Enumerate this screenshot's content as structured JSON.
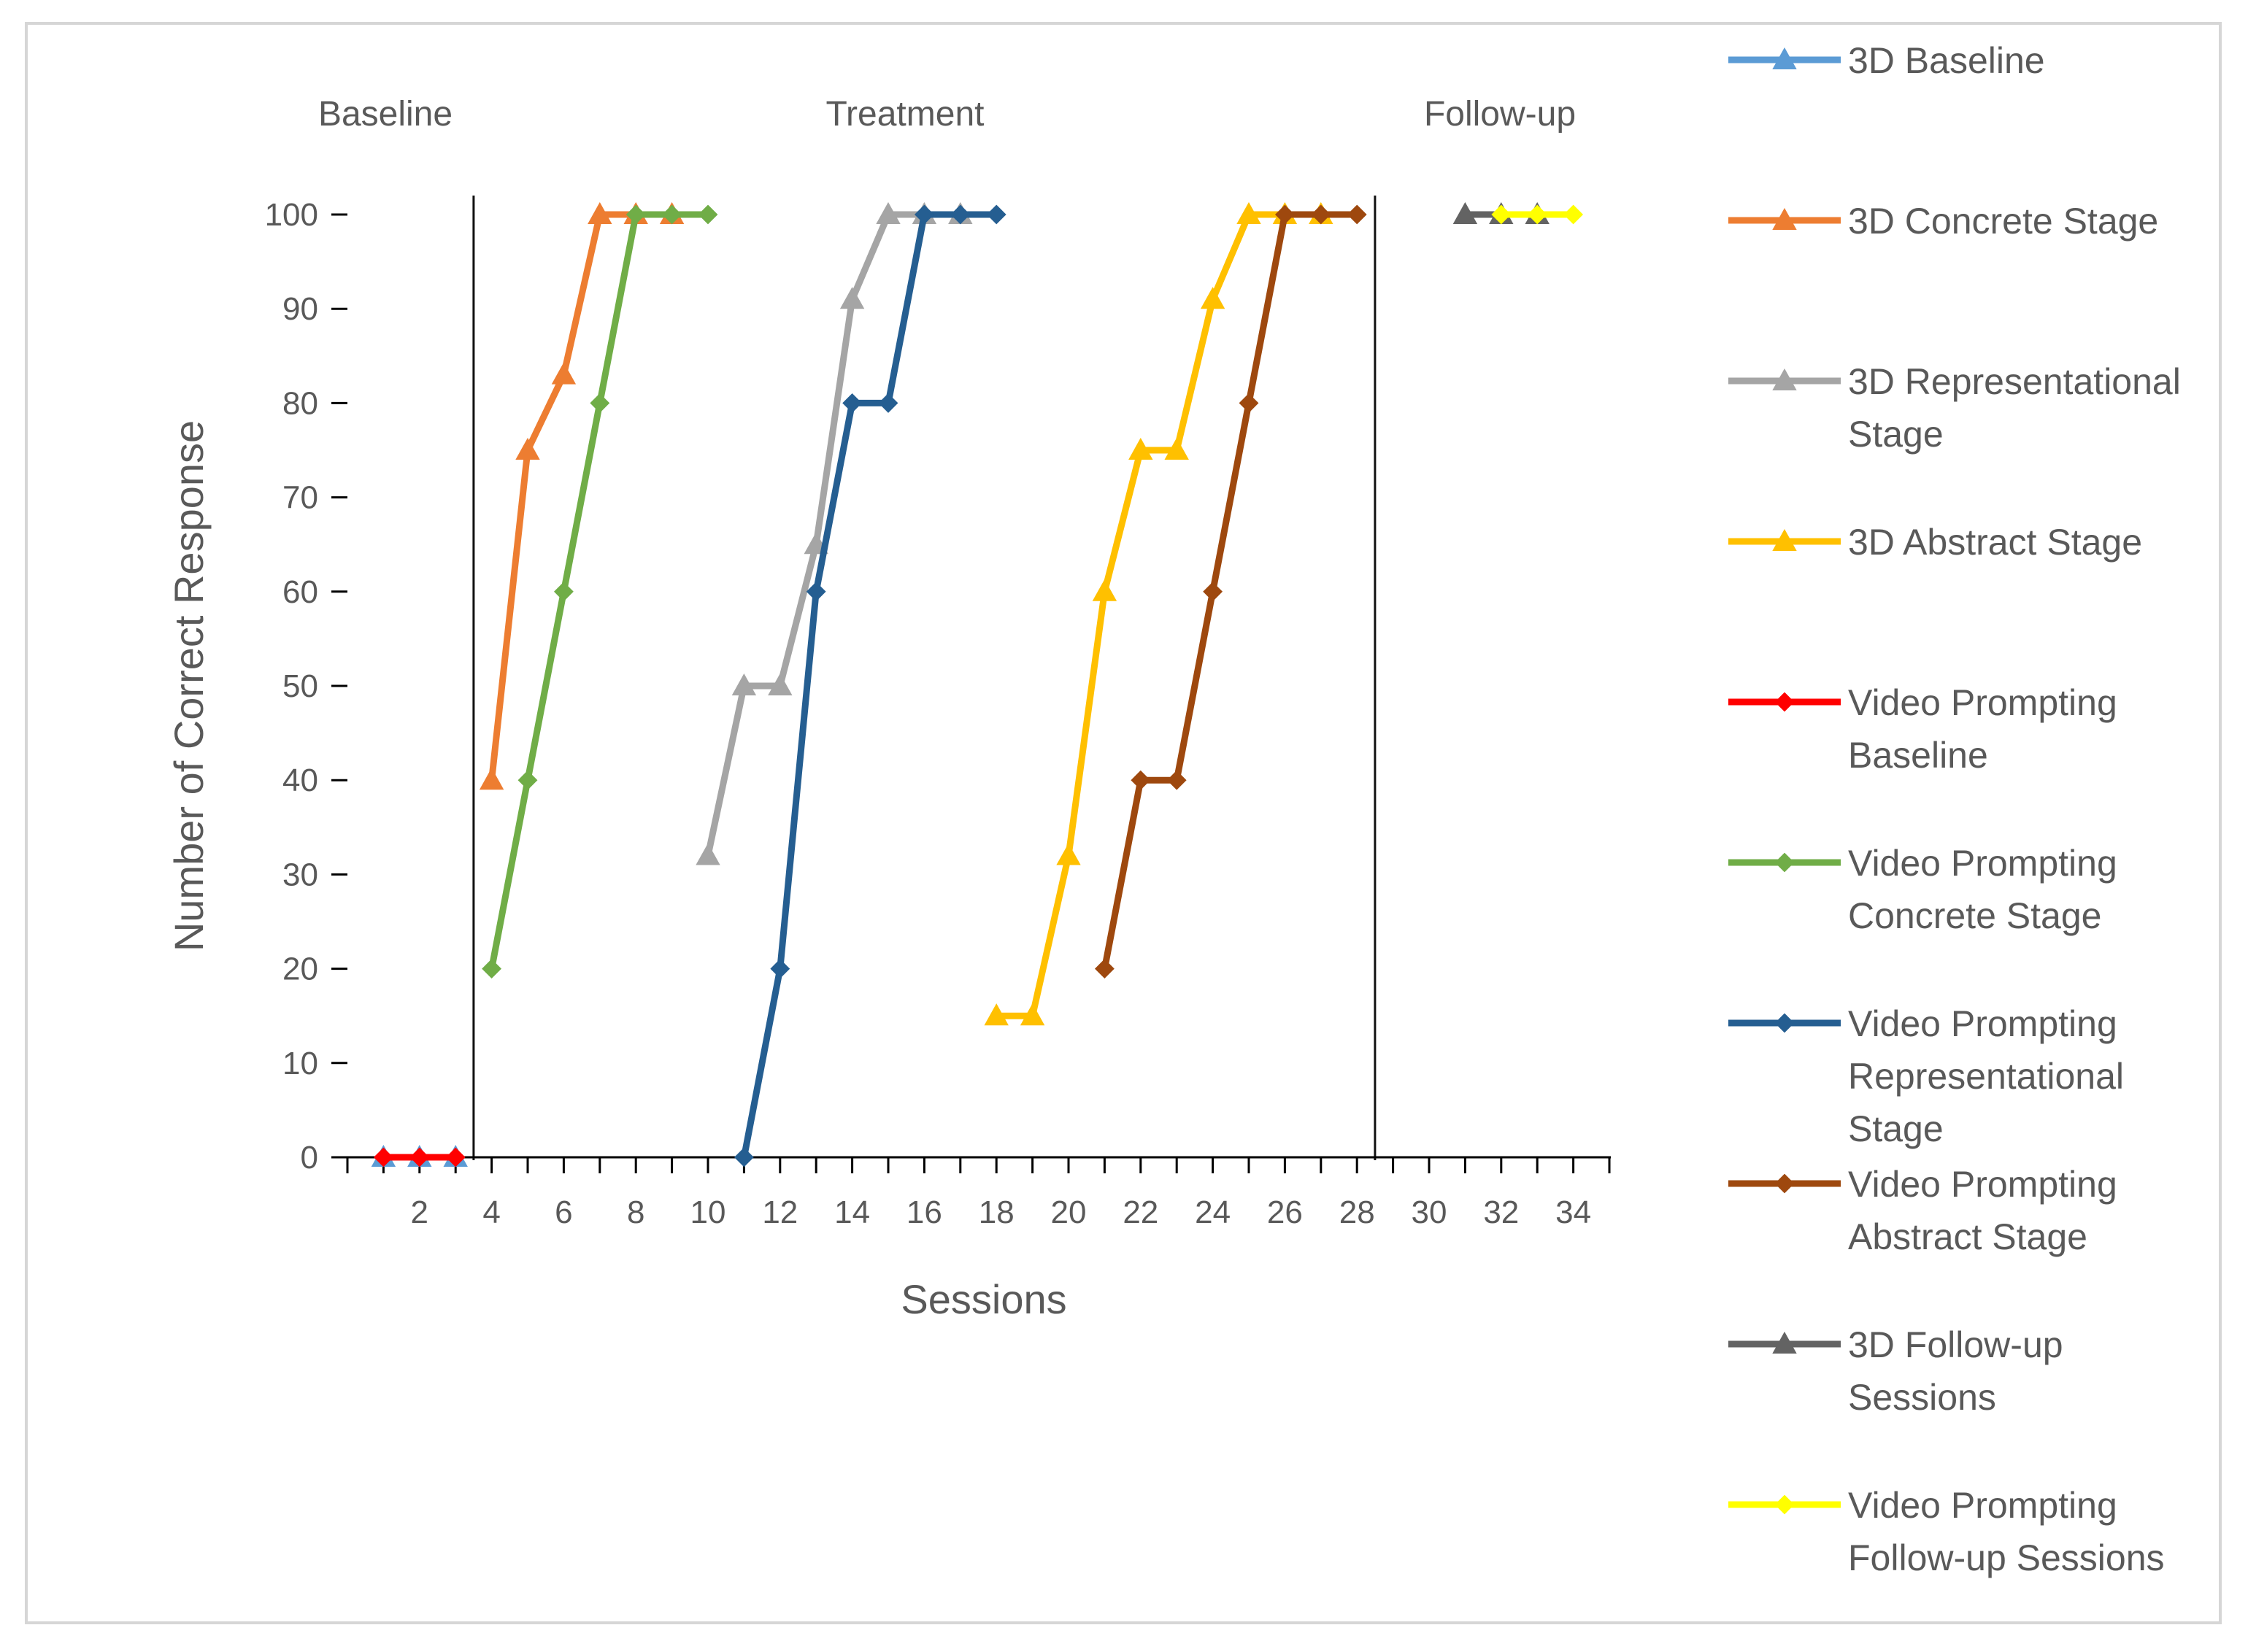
{
  "chart_data": {
    "type": "line",
    "title": "",
    "xlabel": "Sessions",
    "ylabel": "Number of Correct Response",
    "xlim": [
      0,
      35
    ],
    "ylim": [
      0,
      100
    ],
    "x_ticks": [
      2,
      4,
      6,
      8,
      10,
      12,
      14,
      16,
      18,
      20,
      22,
      24,
      26,
      28,
      30,
      32,
      34
    ],
    "y_ticks": [
      0,
      10,
      20,
      30,
      40,
      50,
      60,
      70,
      80,
      90,
      100
    ],
    "phase_labels": [
      {
        "label": "Baseline",
        "x": 1.5
      },
      {
        "label": "Treatment",
        "x": 15.5
      },
      {
        "label": "Follow-up",
        "x": 31.5
      }
    ],
    "phase_lines": [
      3.5,
      28.5
    ],
    "legend_position": "right",
    "series": [
      {
        "name": "3D Baseline",
        "legend": [
          "3D Baseline"
        ],
        "color": "#5b9bd5",
        "marker": "triangle",
        "x": [
          1,
          2,
          3
        ],
        "y": [
          0,
          0,
          0
        ]
      },
      {
        "name": "3D Concrete Stage",
        "legend": [
          "3D Concrete Stage"
        ],
        "color": "#ed7d31",
        "marker": "triangle",
        "x": [
          4,
          5,
          6,
          7,
          8,
          9
        ],
        "y": [
          40,
          75,
          83,
          100,
          100,
          100
        ]
      },
      {
        "name": "3D Representational Stage",
        "legend": [
          "3D Representational",
          "Stage"
        ],
        "color": "#a5a5a5",
        "marker": "triangle",
        "x": [
          10,
          11,
          12,
          13,
          14,
          15,
          16,
          17
        ],
        "y": [
          32,
          50,
          50,
          65,
          91,
          100,
          100,
          100
        ]
      },
      {
        "name": "3D Abstract Stage",
        "legend": [
          "3D Abstract Stage"
        ],
        "color": "#ffc000",
        "marker": "triangle",
        "x": [
          18,
          19,
          20,
          21,
          22,
          23,
          24,
          25,
          26,
          27
        ],
        "y": [
          15,
          15,
          32,
          60,
          75,
          75,
          91,
          100,
          100,
          100
        ]
      },
      {
        "name": "Video Prompting Baseline",
        "legend": [
          "Video Prompting",
          "Baseline"
        ],
        "color": "#ff0000",
        "marker": "diamond",
        "x": [
          1,
          2,
          3
        ],
        "y": [
          0,
          0,
          0
        ]
      },
      {
        "name": "Video Prompting Concrete Stage",
        "legend": [
          "Video Prompting",
          "Concrete Stage"
        ],
        "color": "#70ad47",
        "marker": "diamond",
        "x": [
          4,
          5,
          6,
          7,
          8,
          9,
          10
        ],
        "y": [
          20,
          40,
          60,
          80,
          100,
          100,
          100
        ]
      },
      {
        "name": "Video Prompting Representational Stage",
        "legend": [
          "Video Prompting",
          "Representational",
          "Stage"
        ],
        "color": "#255e91",
        "marker": "diamond",
        "x": [
          11,
          12,
          13,
          14,
          15,
          16,
          17,
          18
        ],
        "y": [
          0,
          20,
          60,
          80,
          80,
          100,
          100,
          100
        ]
      },
      {
        "name": "Video Prompting Abstract Stage",
        "legend": [
          "Video Prompting",
          "Abstract Stage"
        ],
        "color": "#9e480e",
        "marker": "diamond",
        "x": [
          21,
          22,
          23,
          24,
          25,
          26,
          27,
          28
        ],
        "y": [
          20,
          40,
          40,
          60,
          80,
          100,
          100,
          100
        ]
      },
      {
        "name": "3D Follow-up Sessions",
        "legend": [
          "3D Follow-up",
          "Sessions"
        ],
        "color": "#636363",
        "marker": "triangle",
        "x": [
          31,
          32,
          33
        ],
        "y": [
          100,
          100,
          100
        ]
      },
      {
        "name": "Video Prompting Follow-up Sessions",
        "legend": [
          "Video Prompting",
          "Follow-up Sessions"
        ],
        "color": "#ffff00",
        "marker": "diamond",
        "x": [
          32,
          33,
          34
        ],
        "y": [
          100,
          100,
          100
        ]
      }
    ]
  }
}
